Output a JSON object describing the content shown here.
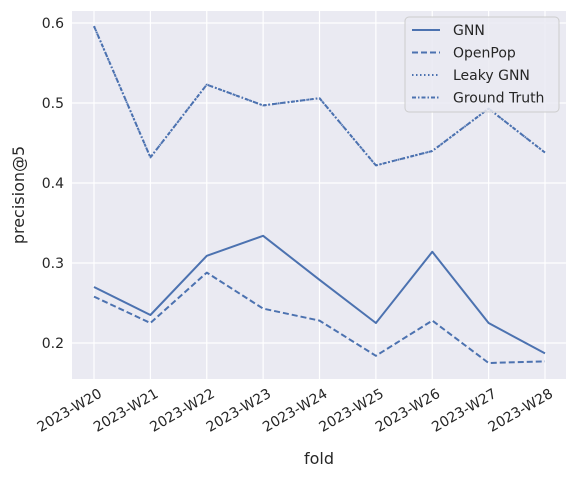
{
  "chart_data": {
    "type": "line",
    "title": "",
    "xlabel": "fold",
    "ylabel": "precision@5",
    "categories": [
      "2023-W20",
      "2023-W21",
      "2023-W22",
      "2023-W23",
      "2023-W24",
      "2023-W25",
      "2023-W26",
      "2023-W27",
      "2023-W28"
    ],
    "yticks": [
      "0.2",
      "0.3",
      "0.4",
      "0.5",
      "0.6"
    ],
    "ylim": [
      0.155,
      0.615
    ],
    "grid": true,
    "legend_position": "top-right",
    "series": [
      {
        "name": "GNN",
        "dash": "solid",
        "color": "#4c72b0",
        "values": [
          0.27,
          0.235,
          0.309,
          0.334,
          0.279,
          0.225,
          0.314,
          0.225,
          0.187
        ]
      },
      {
        "name": "OpenPop",
        "dash": "dashed",
        "color": "#4c72b0",
        "values": [
          0.258,
          0.225,
          0.288,
          0.243,
          0.228,
          0.184,
          0.228,
          0.175,
          0.177
        ]
      },
      {
        "name": "Leaky GNN",
        "dash": "dotted",
        "color": "#4c72b0",
        "values": [
          0.596,
          0.432,
          0.523,
          0.497,
          0.506,
          0.422,
          0.44,
          0.493,
          0.438
        ]
      },
      {
        "name": "Ground Truth",
        "dash": "dashdot",
        "color": "#4c72b0",
        "values": [
          0.596,
          0.432,
          0.523,
          0.497,
          0.506,
          0.422,
          0.44,
          0.493,
          0.438
        ]
      }
    ]
  }
}
